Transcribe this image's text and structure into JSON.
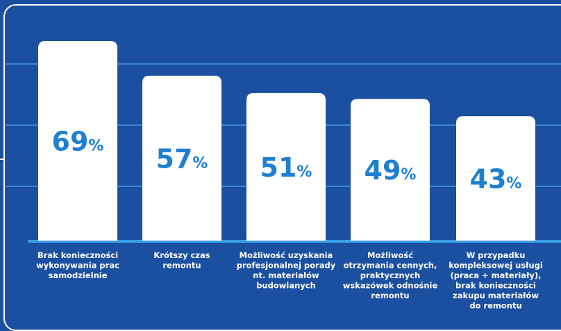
{
  "chart_data": {
    "type": "bar",
    "categories": [
      "Brak konieczności wykonywania prac samodzielnie",
      "Krótszy czas remontu",
      "Możliwość uzyskania profesjonalnej porady nt. materiałów budowlanych",
      "Możliwość otrzymania cennych, praktycznych wskazówek odnośnie remontu",
      "W przypadku kompleksowej usługi (praca + materiały), brak konieczności zakupu materiałów do remontu"
    ],
    "category_lines": [
      [
        "Brak konieczności",
        "wykonywania prac",
        "samodzielnie"
      ],
      [
        "Krótszy czas",
        "remontu"
      ],
      [
        "Możliwość uzyskania",
        "profesjonalnej porady",
        "nt. materiałów",
        "budowlanych"
      ],
      [
        "Możliwość",
        "otrzymania cennych,",
        "praktycznych",
        "wskazówek odnośnie",
        "remontu"
      ],
      [
        "W przypadku",
        "kompleksowej usługi",
        "(praca + materiały),",
        "brak konieczności",
        "zakupu materiałów",
        "do remontu"
      ]
    ],
    "values": [
      69,
      57,
      51,
      49,
      43
    ],
    "unit": "%",
    "colors": {
      "background": "#1b4fa0",
      "bar": "#ffffff",
      "value_text": "#1f7fd1",
      "gridline": "#3c87d6",
      "baseline": "#3aa0e8",
      "label_text": "#ffffff"
    }
  }
}
